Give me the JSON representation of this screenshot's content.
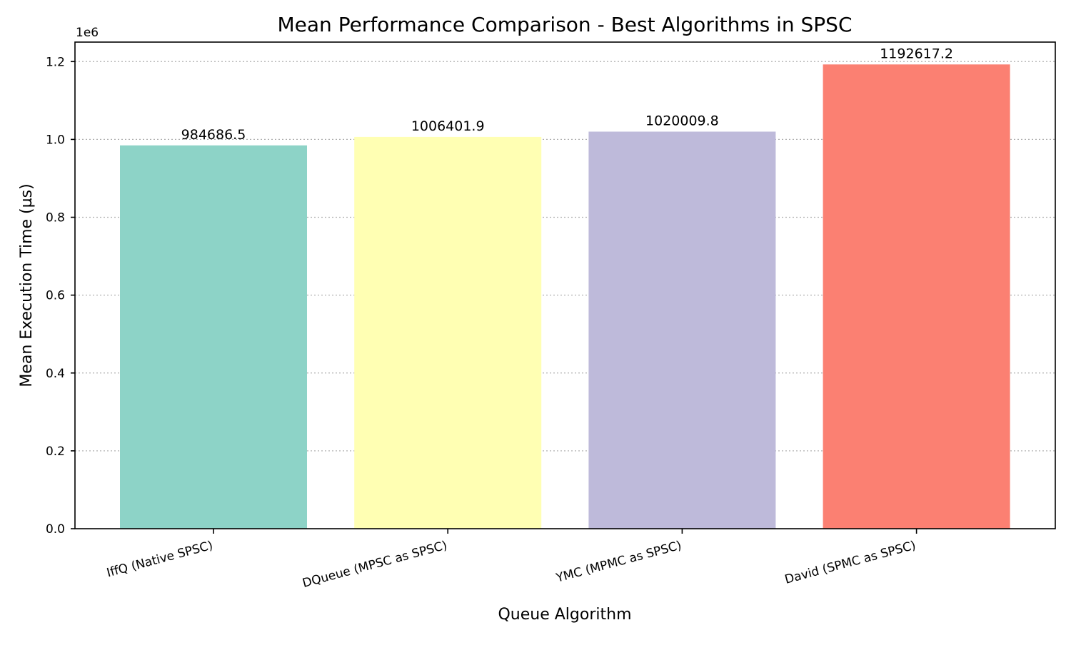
{
  "chart_data": {
    "type": "bar",
    "title": "Mean Performance Comparison - Best Algorithms in SPSC",
    "xlabel": "Queue Algorithm",
    "ylabel": "Mean Execution Time (µs)",
    "y_offset_label": "1e6",
    "categories": [
      "IffQ (Native SPSC)",
      "DQueue (MPSC as SPSC)",
      "YMC (MPMC as SPSC)",
      "David (SPMC as SPSC)"
    ],
    "values": [
      984686.5,
      1006401.9,
      1020009.8,
      1192617.2
    ],
    "value_labels": [
      "984686.5",
      "1006401.9",
      "1020009.8",
      "1192617.2"
    ],
    "colors": [
      "#8dd3c7",
      "#ffffb3",
      "#bebada",
      "#fb8072"
    ],
    "ylim": [
      0,
      1250000
    ],
    "y_ticks": [
      0,
      200000,
      400000,
      600000,
      800000,
      1000000,
      1200000
    ],
    "y_tick_labels": [
      "0.0",
      "0.2",
      "0.4",
      "0.6",
      "0.8",
      "1.0",
      "1.2"
    ],
    "grid": "y-dotted",
    "legend": "none"
  }
}
